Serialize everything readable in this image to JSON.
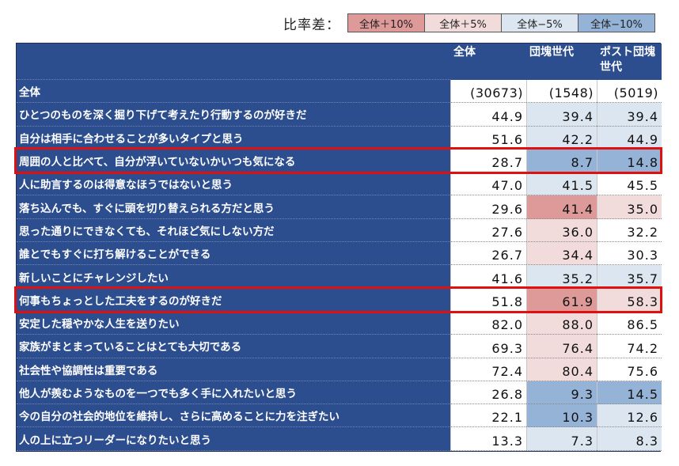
{
  "legend": {
    "title": "比率差：",
    "items": [
      {
        "label": "全体＋10%",
        "color": "#dd9a98",
        "key": "p10"
      },
      {
        "label": "全体＋5%",
        "color": "#f2dcdb",
        "key": "p5"
      },
      {
        "label": "全体−5%",
        "color": "#dce6f1",
        "key": "m5"
      },
      {
        "label": "全体−10%",
        "color": "#95b3d7",
        "key": "m10"
      }
    ]
  },
  "chart_data": {
    "type": "table",
    "columns": [
      "全体",
      "団塊世代",
      "ポスト団塊世代"
    ],
    "base": {
      "label": "全体",
      "values": [
        "(30673)",
        "(1548)",
        "(5019)"
      ]
    },
    "rows": [
      {
        "label": "ひとつのものを深く掘り下げて考えたり行動するのが好きだ",
        "values": [
          44.9,
          39.4,
          39.4
        ],
        "shade": [
          "",
          "m5",
          "m5"
        ]
      },
      {
        "label": "自分は相手に合わせることが多いタイプと思う",
        "values": [
          51.6,
          42.2,
          44.9
        ],
        "shade": [
          "",
          "m5",
          "m5"
        ]
      },
      {
        "label": "周囲の人と比べて、自分が浮いていないかいつも気になる",
        "values": [
          28.7,
          8.7,
          14.8
        ],
        "shade": [
          "",
          "m10",
          "m10"
        ],
        "highlight": true
      },
      {
        "label": "人に助言するのは得意なほうではないと思う",
        "values": [
          47.0,
          41.5,
          45.5
        ],
        "shade": [
          "",
          "m5",
          ""
        ]
      },
      {
        "label": "落ち込んでも、すぐに頭を切り替えられる方だと思う",
        "values": [
          29.6,
          41.4,
          35.0
        ],
        "shade": [
          "",
          "p10",
          "p5"
        ]
      },
      {
        "label": "思った通りにできなくても、それほど気にしない方だ",
        "values": [
          27.6,
          36.0,
          32.2
        ],
        "shade": [
          "",
          "p5",
          ""
        ]
      },
      {
        "label": "誰とでもすぐに打ち解けることができる",
        "values": [
          26.7,
          34.4,
          30.3
        ],
        "shade": [
          "",
          "p5",
          ""
        ]
      },
      {
        "label": "新しいことにチャレンジしたい",
        "values": [
          41.6,
          35.2,
          35.7
        ],
        "shade": [
          "",
          "m5",
          "m5"
        ]
      },
      {
        "label": "何事もちょっとした工夫をするのが好きだ",
        "values": [
          51.8,
          61.9,
          58.3
        ],
        "shade": [
          "",
          "p10",
          "p5"
        ],
        "highlight": true
      },
      {
        "label": "安定した穏やかな人生を送りたい",
        "values": [
          82.0,
          88.0,
          86.5
        ],
        "shade": [
          "",
          "p5",
          ""
        ]
      },
      {
        "label": "家族がまとまっていることはとても大切である",
        "values": [
          69.3,
          76.4,
          74.2
        ],
        "shade": [
          "",
          "p5",
          ""
        ]
      },
      {
        "label": "社会性や協調性は重要である",
        "values": [
          72.4,
          80.4,
          75.6
        ],
        "shade": [
          "",
          "p5",
          ""
        ]
      },
      {
        "label": "他人が羨むようなものを一つでも多く手に入れたいと思う",
        "values": [
          26.8,
          9.3,
          14.5
        ],
        "shade": [
          "",
          "m10",
          "m10"
        ]
      },
      {
        "label": "今の自分の社会的地位を維持し、さらに高めることに力を注ぎたい",
        "values": [
          22.1,
          10.3,
          12.6
        ],
        "shade": [
          "",
          "m10",
          "m5"
        ]
      },
      {
        "label": "人の上に立つリーダーになりたいと思う",
        "values": [
          13.3,
          7.3,
          8.3
        ],
        "shade": [
          "",
          "m5",
          "m5"
        ]
      }
    ]
  }
}
